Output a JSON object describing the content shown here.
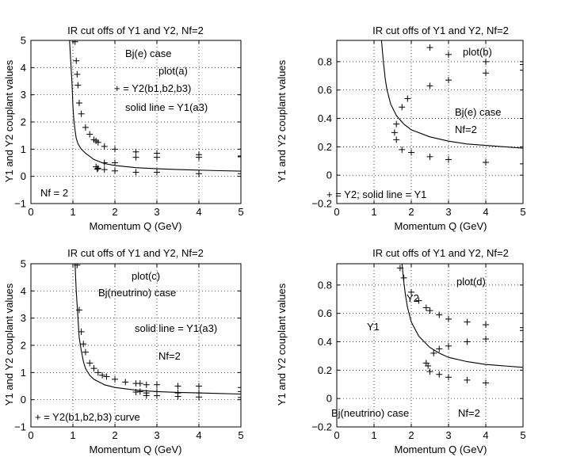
{
  "chart_data": [
    {
      "type": "line",
      "title": "IR cut offs of Y1 and Y2, Nf=2",
      "xlabel": "Momentum Q (GeV)",
      "ylabel": "Y1 and Y2 couplant values",
      "xlim": [
        0,
        5
      ],
      "ylim": [
        -1,
        5
      ],
      "xticks": [
        "0",
        "1",
        "2",
        "3",
        "4",
        "5"
      ],
      "yticks": [
        "−1",
        "0",
        "1",
        "2",
        "3",
        "4",
        "5"
      ],
      "grid": true,
      "series": [
        {
          "name": "Y1(a3)",
          "style": "line",
          "points": [
            [
              0.92,
              5
            ],
            [
              0.95,
              4.2
            ],
            [
              0.98,
              3.4
            ],
            [
              1.0,
              2.6
            ],
            [
              1.02,
              2.1
            ],
            [
              1.05,
              1.7
            ],
            [
              1.08,
              1.4
            ],
            [
              1.12,
              1.2
            ],
            [
              1.2,
              1.0
            ],
            [
              1.3,
              0.85
            ],
            [
              1.5,
              0.62
            ],
            [
              1.75,
              0.47
            ],
            [
              2.0,
              0.4
            ],
            [
              2.5,
              0.32
            ],
            [
              3.0,
              0.28
            ],
            [
              3.5,
              0.25
            ],
            [
              4.0,
              0.23
            ],
            [
              4.5,
              0.21
            ],
            [
              5.0,
              0.19
            ]
          ]
        },
        {
          "name": "Y2(b1,b2,b3)",
          "style": "plus",
          "points": [
            [
              1.05,
              4.95
            ],
            [
              1.08,
              4.25
            ],
            [
              1.1,
              3.75
            ],
            [
              1.12,
              3.35
            ],
            [
              1.15,
              2.7
            ],
            [
              1.2,
              2.3
            ],
            [
              1.3,
              1.8
            ],
            [
              1.4,
              1.55
            ],
            [
              1.5,
              1.35
            ],
            [
              1.55,
              1.3
            ],
            [
              1.6,
              1.25
            ],
            [
              1.55,
              0.35
            ],
            [
              1.6,
              0.3
            ],
            [
              1.58,
              0.27
            ],
            [
              1.75,
              1.1
            ],
            [
              1.75,
              0.5
            ],
            [
              1.75,
              0.25
            ],
            [
              2.0,
              1.0
            ],
            [
              2.0,
              0.5
            ],
            [
              2.0,
              0.2
            ],
            [
              2.5,
              0.9
            ],
            [
              2.5,
              0.7
            ],
            [
              2.5,
              0.15
            ],
            [
              3.0,
              0.85
            ],
            [
              3.0,
              0.7
            ],
            [
              3.0,
              0.15
            ],
            [
              4.0,
              0.8
            ],
            [
              4.0,
              0.7
            ],
            [
              4.0,
              0.1
            ],
            [
              5.0,
              0.75
            ],
            [
              5.0,
              0.72
            ],
            [
              5.0,
              0.1
            ]
          ]
        }
      ],
      "annotations": {
        "case": "Bj(e) case",
        "plot": "plot(a)",
        "legend_y2": "+ = Y2(b1,b2,b3)",
        "legend_y1": "solid line = Y1(a3)",
        "nf": "Nf = 2"
      }
    },
    {
      "type": "line",
      "title": "IR cut offs of Y1 and Y2, Nf=2",
      "xlabel": "Momentum Q (GeV)",
      "ylabel": "Y1 and Y2 couplant values",
      "xlim": [
        0,
        5
      ],
      "ylim": [
        -0.2,
        0.95
      ],
      "xticks": [
        "0",
        "1",
        "2",
        "3",
        "4",
        "5"
      ],
      "yticks": [
        "−0.2",
        "0",
        "0.2",
        "0.4",
        "0.6",
        "0.8"
      ],
      "grid": true,
      "series": [
        {
          "name": "Y1",
          "style": "line",
          "points": [
            [
              1.2,
              0.95
            ],
            [
              1.25,
              0.8
            ],
            [
              1.3,
              0.68
            ],
            [
              1.35,
              0.6
            ],
            [
              1.45,
              0.5
            ],
            [
              1.6,
              0.42
            ],
            [
              1.8,
              0.36
            ],
            [
              2.0,
              0.32
            ],
            [
              2.5,
              0.27
            ],
            [
              3.0,
              0.24
            ],
            [
              3.5,
              0.22
            ],
            [
              4.0,
              0.21
            ],
            [
              4.5,
              0.2
            ],
            [
              5.0,
              0.19
            ]
          ]
        },
        {
          "name": "Y2",
          "style": "plus",
          "points": [
            [
              1.55,
              0.3
            ],
            [
              1.6,
              0.25
            ],
            [
              1.6,
              0.36
            ],
            [
              1.75,
              0.48
            ],
            [
              1.75,
              0.18
            ],
            [
              1.9,
              0.54
            ],
            [
              2.0,
              0.16
            ],
            [
              2.5,
              0.9
            ],
            [
              2.5,
              0.63
            ],
            [
              2.5,
              0.13
            ],
            [
              3.0,
              0.85
            ],
            [
              3.0,
              0.67
            ],
            [
              3.0,
              0.11
            ],
            [
              4.0,
              0.8
            ],
            [
              4.0,
              0.72
            ],
            [
              4.0,
              0.09
            ],
            [
              5.0,
              0.78
            ],
            [
              5.0,
              0.74
            ],
            [
              5.0,
              0.08
            ]
          ]
        }
      ],
      "annotations": {
        "plot": "plot(b)",
        "case": "Bj(e) case",
        "nf": "Nf=2",
        "legend": "+ = Y2; solid line = Y1"
      }
    },
    {
      "type": "line",
      "title": "IR cut offs of Y1 and Y2, Nf=2",
      "xlabel": "Momentum Q (GeV)",
      "ylabel": "Y1 and Y2 couplant values",
      "xlim": [
        0,
        5
      ],
      "ylim": [
        -1,
        5
      ],
      "xticks": [
        "0",
        "1",
        "2",
        "3",
        "4",
        "5"
      ],
      "yticks": [
        "−1",
        "0",
        "1",
        "2",
        "3",
        "4",
        "5"
      ],
      "grid": true,
      "series": [
        {
          "name": "Y1(a3)",
          "style": "line",
          "points": [
            [
              1.05,
              5
            ],
            [
              1.08,
              4.0
            ],
            [
              1.12,
              3.0
            ],
            [
              1.15,
              2.3
            ],
            [
              1.2,
              1.8
            ],
            [
              1.25,
              1.4
            ],
            [
              1.3,
              1.15
            ],
            [
              1.4,
              0.9
            ],
            [
              1.5,
              0.75
            ],
            [
              1.75,
              0.55
            ],
            [
              2.0,
              0.45
            ],
            [
              2.5,
              0.35
            ],
            [
              3.0,
              0.3
            ],
            [
              3.5,
              0.27
            ],
            [
              4.0,
              0.25
            ],
            [
              4.5,
              0.23
            ],
            [
              5.0,
              0.21
            ]
          ]
        },
        {
          "name": "Y2(b1,b2,b3)",
          "style": "plus",
          "points": [
            [
              1.1,
              4.95
            ],
            [
              1.15,
              3.3
            ],
            [
              1.2,
              2.5
            ],
            [
              1.25,
              2.05
            ],
            [
              1.3,
              1.75
            ],
            [
              1.4,
              1.35
            ],
            [
              1.5,
              1.15
            ],
            [
              1.6,
              1.0
            ],
            [
              1.7,
              0.9
            ],
            [
              1.8,
              0.85
            ],
            [
              2.0,
              0.75
            ],
            [
              2.25,
              0.65
            ],
            [
              2.5,
              0.6
            ],
            [
              2.5,
              0.28
            ],
            [
              2.6,
              0.6
            ],
            [
              2.6,
              0.3
            ],
            [
              2.75,
              0.55
            ],
            [
              2.75,
              0.25
            ],
            [
              2.75,
              0.15
            ],
            [
              3.0,
              0.55
            ],
            [
              3.0,
              0.3
            ],
            [
              3.0,
              0.15
            ],
            [
              3.5,
              0.5
            ],
            [
              3.5,
              0.25
            ],
            [
              3.5,
              0.12
            ],
            [
              4.0,
              0.5
            ],
            [
              4.0,
              0.25
            ],
            [
              4.0,
              0.1
            ],
            [
              5.0,
              0.45
            ],
            [
              5.0,
              0.3
            ],
            [
              5.0,
              0.08
            ]
          ]
        }
      ],
      "annotations": {
        "plot": "plot(c)",
        "case": "Bj(neutrino) case",
        "legend_y1": "solid line = Y1(a3)",
        "nf": "Nf=2",
        "legend_y2": "+ = Y2(b1,b2,b3) curve"
      }
    },
    {
      "type": "line",
      "title": "IR cut offs of Y1 and Y2, Nf=2",
      "xlabel": "Momentum Q (GeV)",
      "ylabel": "Y1 and Y2 couplant values",
      "xlim": [
        0,
        5
      ],
      "ylim": [
        -0.2,
        0.95
      ],
      "xticks": [
        "0",
        "1",
        "2",
        "3",
        "4",
        "5"
      ],
      "yticks": [
        "−0.2",
        "0",
        "0.2",
        "0.4",
        "0.6",
        "0.8"
      ],
      "grid": true,
      "series": [
        {
          "name": "Y1",
          "style": "line",
          "points": [
            [
              1.75,
              0.95
            ],
            [
              1.8,
              0.82
            ],
            [
              1.85,
              0.72
            ],
            [
              1.9,
              0.64
            ],
            [
              2.0,
              0.54
            ],
            [
              2.2,
              0.44
            ],
            [
              2.5,
              0.36
            ],
            [
              2.75,
              0.32
            ],
            [
              3.0,
              0.29
            ],
            [
              3.5,
              0.26
            ],
            [
              4.0,
              0.24
            ],
            [
              4.5,
              0.23
            ],
            [
              5.0,
              0.22
            ]
          ]
        },
        {
          "name": "Y2",
          "style": "plus",
          "points": [
            [
              1.7,
              0.92
            ],
            [
              1.8,
              0.85
            ],
            [
              2.0,
              0.75
            ],
            [
              2.2,
              0.69
            ],
            [
              2.4,
              0.64
            ],
            [
              2.5,
              0.62
            ],
            [
              2.75,
              0.59
            ],
            [
              3.0,
              0.56
            ],
            [
              2.4,
              0.25
            ],
            [
              2.45,
              0.23
            ],
            [
              2.5,
              0.19
            ],
            [
              2.6,
              0.32
            ],
            [
              2.75,
              0.35
            ],
            [
              2.75,
              0.17
            ],
            [
              3.0,
              0.37
            ],
            [
              3.0,
              0.15
            ],
            [
              3.5,
              0.54
            ],
            [
              3.5,
              0.4
            ],
            [
              3.5,
              0.13
            ],
            [
              4.0,
              0.52
            ],
            [
              4.0,
              0.42
            ],
            [
              4.0,
              0.11
            ],
            [
              5.0,
              0.5
            ],
            [
              5.0,
              0.48
            ]
          ]
        }
      ],
      "annotations": {
        "plot": "plot(d)",
        "y2": "Y2",
        "y1": "Y1",
        "case": "Bj(neutrino) case",
        "nf": "Nf=2"
      }
    }
  ]
}
